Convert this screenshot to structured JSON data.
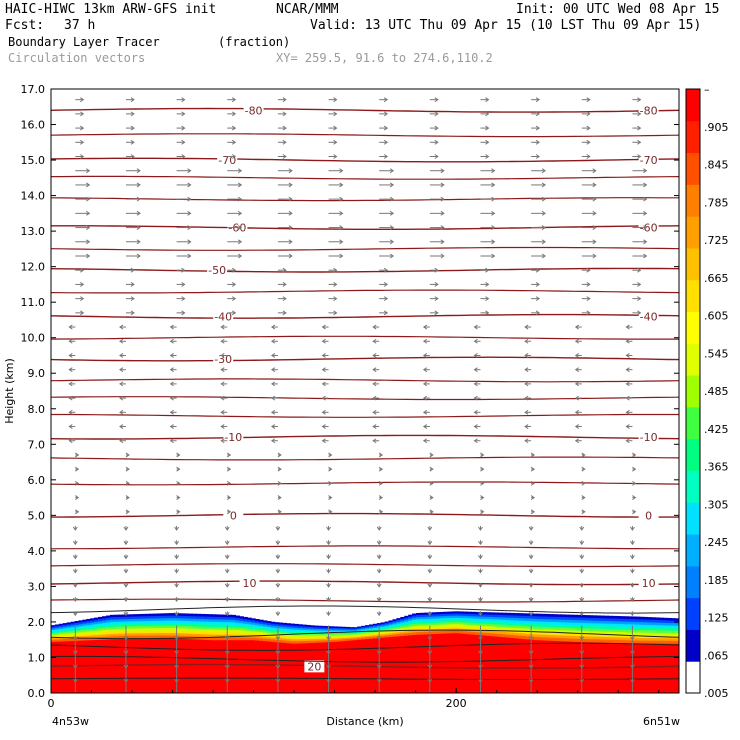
{
  "header": {
    "model": "HAIC-HIWC 13km ARW-GFS init",
    "org": "NCAR/MMM",
    "init": "Init: 00 UTC Wed 08 Apr 15",
    "fcst_label": "Fcst:",
    "fcst_value": "37 h",
    "valid": "Valid: 13 UTC Thu 09 Apr 15 (10 LST Thu 09 Apr 15)",
    "field": "Boundary Layer Tracer",
    "units": "(fraction)",
    "vectors": "Circulation vectors",
    "xy": "XY= 259.5, 91.6 to 274.6,110.2"
  },
  "colors": {
    "frame": "#000000",
    "contour": "#8b1a1a",
    "vector": "#777777",
    "header_gray": "#9a9a9a"
  },
  "chart_data": {
    "type": "heatmap",
    "xlabel": "Distance (km)",
    "ylabel": "Height (km)",
    "xlim": [
      0,
      310
    ],
    "ylim": [
      0,
      17
    ],
    "x_ticks": [
      "0",
      "200"
    ],
    "x_end_labels": {
      "left": "4n53w",
      "right": "6n51w"
    },
    "y_ticks": [
      "0.0",
      "1.0",
      "2.0",
      "3.0",
      "4.0",
      "5.0",
      "6.0",
      "7.0",
      "8.0",
      "9.0",
      "10.0",
      "11.0",
      "12.0",
      "13.0",
      "14.0",
      "15.0",
      "16.0",
      "17.0"
    ],
    "colorbar": {
      "labels": [
        "–",
        ".905",
        ".845",
        ".785",
        ".725",
        ".665",
        ".605",
        ".545",
        ".485",
        ".425",
        ".365",
        ".305",
        ".245",
        ".185",
        ".125",
        ".065",
        ".005"
      ],
      "stops": [
        "#ffffff",
        "#0000c8",
        "#0040ff",
        "#0080ff",
        "#00b0ff",
        "#00e0ff",
        "#00ffc0",
        "#00ff80",
        "#40ff40",
        "#a0ff00",
        "#e0ff00",
        "#ffff00",
        "#ffe000",
        "#ffc000",
        "#ffa000",
        "#ff8000",
        "#ff5000",
        "#ff2000",
        "#ff0000"
      ]
    },
    "tracer_top_km": [
      [
        0,
        1.9
      ],
      [
        15,
        2.05
      ],
      [
        30,
        2.2
      ],
      [
        60,
        2.25
      ],
      [
        90,
        2.2
      ],
      [
        110,
        2.0
      ],
      [
        130,
        1.9
      ],
      [
        150,
        1.85
      ],
      [
        165,
        2.0
      ],
      [
        180,
        2.25
      ],
      [
        200,
        2.3
      ],
      [
        230,
        2.25
      ],
      [
        260,
        2.2
      ],
      [
        290,
        2.15
      ],
      [
        310,
        2.1
      ]
    ],
    "tracer_red_top_km": [
      [
        0,
        1.45
      ],
      [
        20,
        1.5
      ],
      [
        40,
        1.55
      ],
      [
        60,
        1.55
      ],
      [
        80,
        1.5
      ],
      [
        100,
        1.5
      ],
      [
        120,
        1.4
      ],
      [
        140,
        1.45
      ],
      [
        160,
        1.55
      ],
      [
        180,
        1.65
      ],
      [
        200,
        1.7
      ],
      [
        220,
        1.6
      ],
      [
        240,
        1.5
      ],
      [
        260,
        1.45
      ],
      [
        290,
        1.4
      ],
      [
        310,
        1.4
      ]
    ],
    "contours": [
      {
        "label": "-80",
        "height_km": 16.4,
        "label_x_km": [
          100,
          295
        ]
      },
      {
        "label": "-70",
        "height_km": 15.0,
        "label_x_km": [
          87,
          295
        ]
      },
      {
        "label": "-60",
        "height_km": 13.1,
        "label_x_km": [
          92,
          295
        ]
      },
      {
        "label": "-50",
        "height_km": 11.9,
        "label_x_km": [
          82,
          0
        ]
      },
      {
        "label": "-40",
        "height_km": 10.6,
        "label_x_km": [
          85,
          295
        ]
      },
      {
        "label": "-30",
        "height_km": 9.4,
        "label_x_km": [
          85,
          0
        ]
      },
      {
        "label": "-10",
        "height_km": 7.2,
        "label_x_km": [
          90,
          295
        ]
      },
      {
        "label": "0",
        "height_km": 5.0,
        "label_x_km": [
          90,
          295
        ]
      },
      {
        "label": "10",
        "height_km": 3.1,
        "label_x_km": [
          98,
          295
        ]
      },
      {
        "label": "20",
        "height_km": 0.75,
        "label_x_km": [
          130,
          0
        ]
      }
    ],
    "extra_isotherm_heights_km": [
      15.7,
      14.5,
      13.9,
      12.5,
      11.3,
      10.0,
      8.8,
      8.3,
      7.8,
      6.6,
      5.9,
      4.1,
      3.6,
      2.6
    ]
  }
}
